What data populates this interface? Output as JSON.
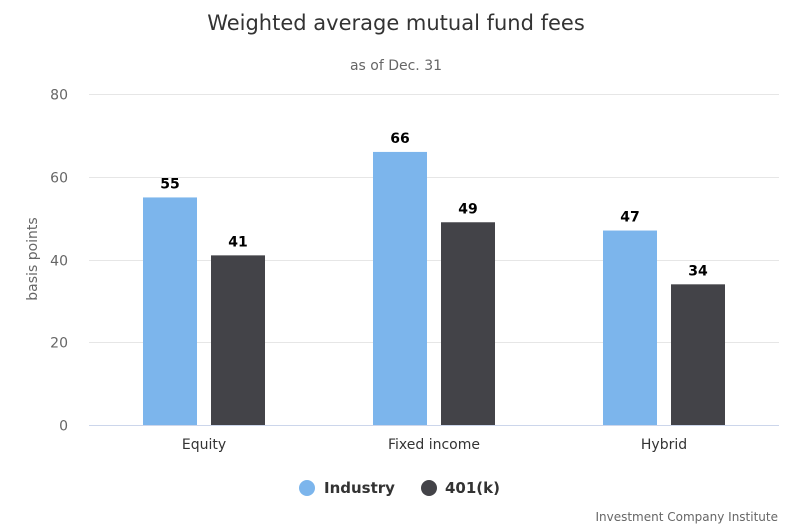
{
  "chart_data": {
    "type": "bar",
    "title": "Weighted average mutual fund fees",
    "subtitle": "as of Dec. 31",
    "ylabel": "basis points",
    "xlabel": "",
    "ylim": [
      0,
      80
    ],
    "yticks": [
      0,
      20,
      40,
      60,
      80
    ],
    "categories": [
      "Equity",
      "Fixed income",
      "Hybrid"
    ],
    "series": [
      {
        "name": "Industry",
        "color": "#7cb5ec",
        "values": [
          55,
          66,
          47
        ]
      },
      {
        "name": "401(k)",
        "color": "#434348",
        "values": [
          41,
          49,
          34
        ]
      }
    ],
    "grid": true,
    "legend": "bottom-center",
    "credit": "Investment Company Institute"
  }
}
